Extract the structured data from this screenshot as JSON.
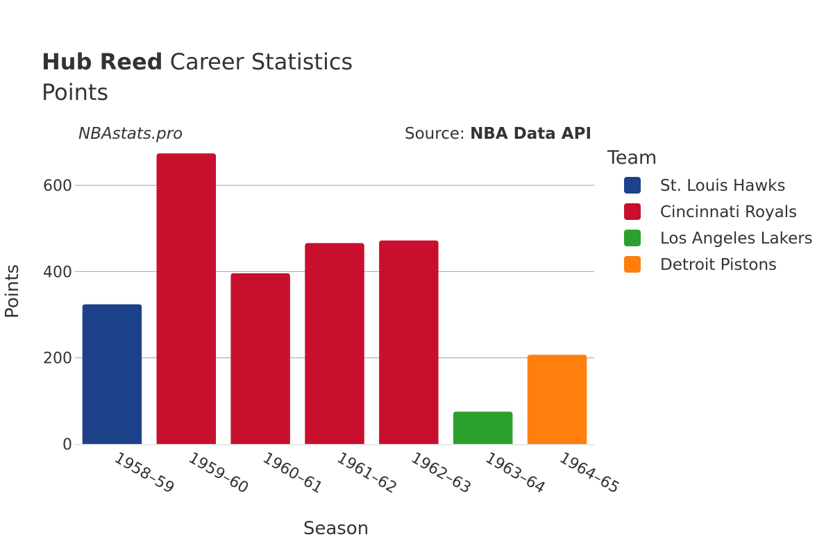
{
  "header": {
    "title_bold": "Hub Reed",
    "title_rest": " Career Statistics",
    "subtitle": "Points",
    "watermark": "NBAstats.pro",
    "source_prefix": "Source: ",
    "source_bold": "NBA Data API"
  },
  "legend": {
    "title": "Team",
    "items": [
      {
        "label": "St. Louis Hawks",
        "color": "#1d428a"
      },
      {
        "label": "Cincinnati Royals",
        "color": "#c8102e"
      },
      {
        "label": "Los Angeles Lakers",
        "color": "#2ca02c"
      },
      {
        "label": "Detroit Pistons",
        "color": "#ff7f0e"
      }
    ]
  },
  "chart_data": {
    "type": "bar",
    "categories": [
      "1958–59",
      "1959–60",
      "1960–61",
      "1961–62",
      "1962–63",
      "1963–64",
      "1964–65"
    ],
    "values": [
      324,
      674,
      396,
      466,
      472,
      75,
      207
    ],
    "teams": [
      "St. Louis Hawks",
      "Cincinnati Royals",
      "Cincinnati Royals",
      "Cincinnati Royals",
      "Cincinnati Royals",
      "Los Angeles Lakers",
      "Detroit Pistons"
    ],
    "xlabel": "Season",
    "ylabel": "Points",
    "ylim": [
      0,
      700
    ],
    "yticks": [
      0,
      200,
      400,
      600
    ],
    "grid": true,
    "legend_position": "right"
  }
}
